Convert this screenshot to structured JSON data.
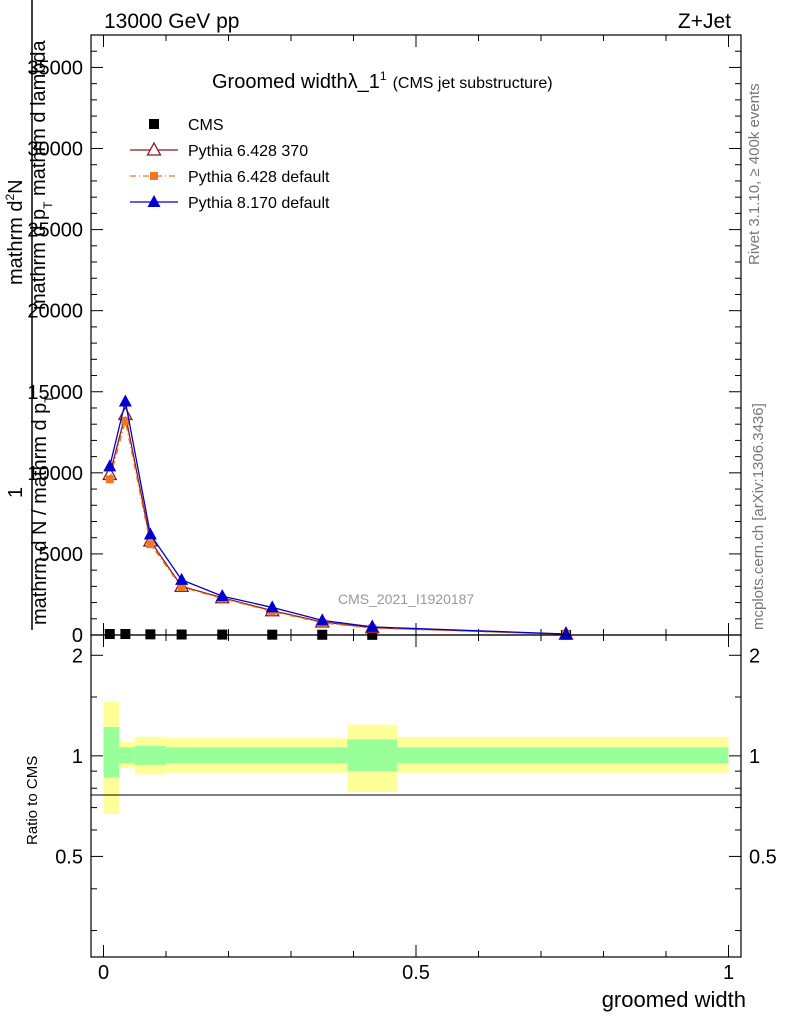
{
  "header": {
    "energy_label": "13000 GeV pp",
    "process_label": "Z+Jet"
  },
  "side_labels": {
    "rivet": "Rivet 3.1.10, ≥ 400k events",
    "mcplots": "mcplots.cern.ch [arXiv:1306.3436]"
  },
  "chart_data": [
    {
      "type": "line",
      "title_main": "Groomed widthλ_1",
      "title_sup": "1",
      "title_sub": "(CMS jet substructure)",
      "watermark": "CMS_2021_I1920187",
      "ylabel_num_line1": "mathrm d",
      "ylabel_num_line1_sup": "2",
      "ylabel_num_line1_end": "N",
      "ylabel_num_line2": "mathrm d p",
      "ylabel_num_line2_sub": "T",
      "ylabel_num_line2_end": " mathrm d lambda",
      "ylabel_den_one": "1",
      "ylabel_den": "mathrm d N / mathrm d p",
      "ylabel_den_sub": "T",
      "ylim": [
        0,
        37000
      ],
      "yticks": [
        0,
        5000,
        10000,
        15000,
        20000,
        25000,
        30000,
        35000
      ],
      "ytick_labels": [
        "0",
        "5000",
        "10000",
        "15000",
        "20000",
        "25000",
        "30000",
        "35000"
      ],
      "xlim": [
        -0.02,
        1.02
      ],
      "grid": false,
      "legend_position": "top-left",
      "series": [
        {
          "name": "CMS",
          "color": "#000000",
          "marker": "square",
          "x": [
            0.01,
            0.035,
            0.075,
            0.125,
            0.19,
            0.27,
            0.35,
            0.43,
            0.74
          ],
          "y": [
            60,
            60,
            40,
            30,
            25,
            20,
            15,
            10,
            3
          ]
        },
        {
          "name": "Pythia 6.428 370",
          "color": "#8b1a1a",
          "marker": "triangle-open",
          "dash": "",
          "x": [
            0.01,
            0.035,
            0.075,
            0.125,
            0.19,
            0.27,
            0.35,
            0.43,
            0.74
          ],
          "y": [
            9900,
            13600,
            5800,
            3000,
            2300,
            1500,
            800,
            450,
            50
          ],
          "err": [
            250,
            300,
            150,
            80,
            60,
            50,
            40,
            30,
            10
          ]
        },
        {
          "name": "Pythia 6.428 default",
          "color": "#ee7722",
          "marker": "square-small",
          "dash": "6,3,1,3",
          "x": [
            0.01,
            0.035,
            0.075,
            0.125,
            0.19,
            0.27,
            0.35,
            0.43,
            0.74
          ],
          "y": [
            9600,
            13200,
            5600,
            2950,
            2250,
            1450,
            750,
            420,
            45
          ],
          "err": [
            250,
            300,
            150,
            80,
            60,
            50,
            40,
            30,
            10
          ]
        },
        {
          "name": "Pythia 8.170 default",
          "color": "#0000cc",
          "marker": "triangle",
          "dash": "",
          "x": [
            0.01,
            0.035,
            0.075,
            0.125,
            0.19,
            0.27,
            0.35,
            0.43,
            0.74
          ],
          "y": [
            10400,
            14400,
            6200,
            3400,
            2400,
            1700,
            900,
            500,
            60
          ],
          "err": [
            300,
            300,
            150,
            80,
            60,
            50,
            40,
            30,
            10
          ]
        }
      ]
    },
    {
      "type": "area",
      "ylabel": "Ratio to CMS",
      "xlabel": "groomed width",
      "ylim": [
        0.25,
        2.3
      ],
      "yticks": [
        0.5,
        1,
        2
      ],
      "ytick_labels": [
        "0.5",
        "1",
        "2"
      ],
      "xlim": [
        -0.02,
        1.02
      ],
      "xticks": [
        0,
        0.5,
        1
      ],
      "xtick_labels": [
        "0",
        "0.5",
        "1"
      ],
      "reference": 1,
      "bands": [
        {
          "x0": 0.0,
          "x1": 0.025,
          "inner": [
            0.86,
            1.22
          ],
          "outer": [
            0.67,
            1.45
          ]
        },
        {
          "x0": 0.025,
          "x1": 0.05,
          "inner": [
            0.95,
            1.06
          ],
          "outer": [
            0.92,
            1.1
          ]
        },
        {
          "x0": 0.05,
          "x1": 0.1,
          "inner": [
            0.94,
            1.07
          ],
          "outer": [
            0.88,
            1.14
          ]
        },
        {
          "x0": 0.1,
          "x1": 0.15,
          "inner": [
            0.95,
            1.06
          ],
          "outer": [
            0.89,
            1.13
          ]
        },
        {
          "x0": 0.15,
          "x1": 0.39,
          "inner": [
            0.95,
            1.06
          ],
          "outer": [
            0.89,
            1.13
          ]
        },
        {
          "x0": 0.39,
          "x1": 0.47,
          "inner": [
            0.9,
            1.12
          ],
          "outer": [
            0.78,
            1.24
          ]
        },
        {
          "x0": 0.47,
          "x1": 1.0,
          "inner": [
            0.95,
            1.06
          ],
          "outer": [
            0.89,
            1.14
          ]
        }
      ],
      "band_colors": {
        "inner": "#99ff99",
        "outer": "#ffff99"
      }
    }
  ]
}
